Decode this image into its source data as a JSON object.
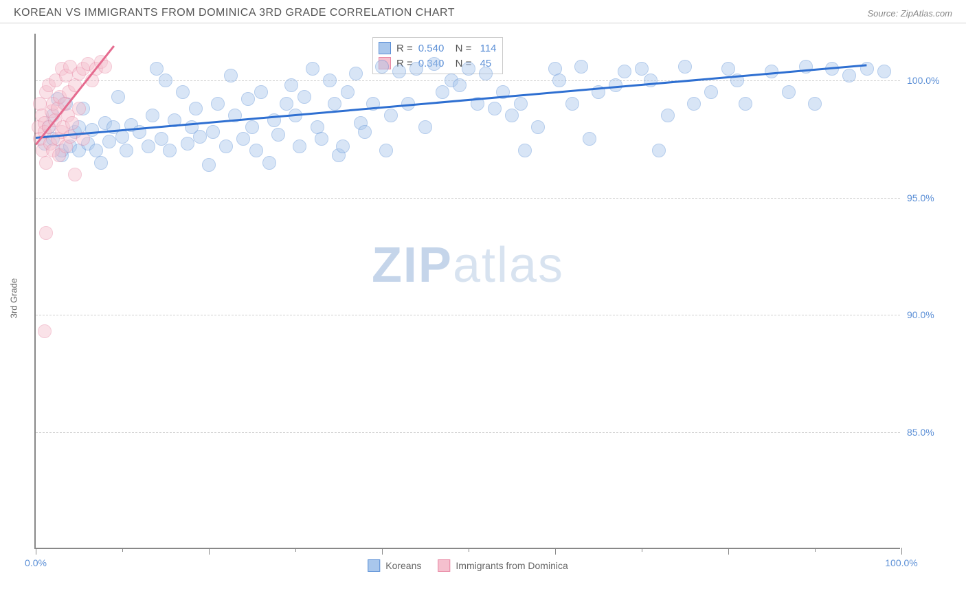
{
  "header": {
    "title": "KOREAN VS IMMIGRANTS FROM DOMINICA 3RD GRADE CORRELATION CHART",
    "source": "Source: ZipAtlas.com"
  },
  "watermark": {
    "part1": "ZIP",
    "part2": "atlas"
  },
  "chart": {
    "type": "scatter",
    "ylabel": "3rd Grade",
    "xlim": [
      0,
      100
    ],
    "ylim": [
      80,
      102
    ],
    "yticks": [
      {
        "value": 85,
        "label": "85.0%"
      },
      {
        "value": 90,
        "label": "90.0%"
      },
      {
        "value": 95,
        "label": "95.0%"
      },
      {
        "value": 100,
        "label": "100.0%"
      }
    ],
    "xticks_major": [
      0,
      20,
      40,
      60,
      80,
      100
    ],
    "xtick_labels": [
      {
        "value": 0,
        "label": "0.0%"
      },
      {
        "value": 100,
        "label": "100.0%"
      }
    ],
    "xticks_minor": [
      10,
      30,
      50,
      70,
      90
    ],
    "background_color": "#ffffff",
    "grid_color": "#d0d0d0",
    "axis_color": "#888888",
    "label_color": "#5b8fd6",
    "marker_radius": 10,
    "marker_opacity": 0.45,
    "series": [
      {
        "name": "Koreans",
        "color_fill": "#a9c7ec",
        "color_stroke": "#5b8fd6",
        "trend_color": "#2e6fd1",
        "trend_width": 3,
        "r": "0.540",
        "n": "114",
        "trend": {
          "x1": 0,
          "y1": 97.6,
          "x2": 96,
          "y2": 100.7
        },
        "points": [
          [
            1,
            97.3
          ],
          [
            1.5,
            98.0
          ],
          [
            2,
            97.5
          ],
          [
            2,
            98.5
          ],
          [
            2.5,
            99.2
          ],
          [
            3,
            96.8
          ],
          [
            3,
            97.0
          ],
          [
            3.5,
            99.0
          ],
          [
            4,
            97.2
          ],
          [
            4.5,
            97.8
          ],
          [
            5,
            97.0
          ],
          [
            5,
            98.0
          ],
          [
            5.5,
            98.8
          ],
          [
            6,
            97.3
          ],
          [
            6.5,
            97.9
          ],
          [
            7,
            97.0
          ],
          [
            7.5,
            96.5
          ],
          [
            8,
            98.2
          ],
          [
            8.5,
            97.4
          ],
          [
            9,
            98.0
          ],
          [
            9.5,
            99.3
          ],
          [
            10,
            97.6
          ],
          [
            10.5,
            97.0
          ],
          [
            11,
            98.1
          ],
          [
            12,
            97.8
          ],
          [
            13,
            97.2
          ],
          [
            13.5,
            98.5
          ],
          [
            14,
            100.5
          ],
          [
            14.5,
            97.5
          ],
          [
            15,
            100.0
          ],
          [
            15.5,
            97.0
          ],
          [
            16,
            98.3
          ],
          [
            17,
            99.5
          ],
          [
            17.5,
            97.3
          ],
          [
            18,
            98.0
          ],
          [
            18.5,
            98.8
          ],
          [
            19,
            97.6
          ],
          [
            20,
            96.4
          ],
          [
            20.5,
            97.8
          ],
          [
            21,
            99.0
          ],
          [
            22,
            97.2
          ],
          [
            22.5,
            100.2
          ],
          [
            23,
            98.5
          ],
          [
            24,
            97.5
          ],
          [
            24.5,
            99.2
          ],
          [
            25,
            98.0
          ],
          [
            25.5,
            97.0
          ],
          [
            26,
            99.5
          ],
          [
            27,
            96.5
          ],
          [
            27.5,
            98.3
          ],
          [
            28,
            97.7
          ],
          [
            29,
            99.0
          ],
          [
            29.5,
            99.8
          ],
          [
            30,
            98.5
          ],
          [
            30.5,
            97.2
          ],
          [
            31,
            99.3
          ],
          [
            32,
            100.5
          ],
          [
            32.5,
            98.0
          ],
          [
            33,
            97.5
          ],
          [
            34,
            100.0
          ],
          [
            34.5,
            99.0
          ],
          [
            35,
            96.8
          ],
          [
            35.5,
            97.2
          ],
          [
            36,
            99.5
          ],
          [
            37,
            100.3
          ],
          [
            37.5,
            98.2
          ],
          [
            38,
            97.8
          ],
          [
            39,
            99.0
          ],
          [
            40,
            100.6
          ],
          [
            40.5,
            97.0
          ],
          [
            41,
            98.5
          ],
          [
            42,
            100.4
          ],
          [
            43,
            99.0
          ],
          [
            44,
            100.5
          ],
          [
            45,
            98.0
          ],
          [
            46,
            100.7
          ],
          [
            47,
            99.5
          ],
          [
            48,
            100.0
          ],
          [
            49,
            99.8
          ],
          [
            50,
            100.5
          ],
          [
            51,
            99.0
          ],
          [
            52,
            100.3
          ],
          [
            53,
            98.8
          ],
          [
            54,
            99.5
          ],
          [
            55,
            98.5
          ],
          [
            56,
            99.0
          ],
          [
            56.5,
            97.0
          ],
          [
            58,
            98.0
          ],
          [
            60,
            100.5
          ],
          [
            60.5,
            100.0
          ],
          [
            62,
            99.0
          ],
          [
            63,
            100.6
          ],
          [
            64,
            97.5
          ],
          [
            65,
            99.5
          ],
          [
            67,
            99.8
          ],
          [
            68,
            100.4
          ],
          [
            70,
            100.5
          ],
          [
            71,
            100.0
          ],
          [
            72,
            97.0
          ],
          [
            73,
            98.5
          ],
          [
            75,
            100.6
          ],
          [
            76,
            99.0
          ],
          [
            78,
            99.5
          ],
          [
            80,
            100.5
          ],
          [
            81,
            100.0
          ],
          [
            82,
            99.0
          ],
          [
            85,
            100.4
          ],
          [
            87,
            99.5
          ],
          [
            89,
            100.6
          ],
          [
            90,
            99.0
          ],
          [
            92,
            100.5
          ],
          [
            94,
            100.2
          ],
          [
            96,
            100.5
          ],
          [
            98,
            100.4
          ]
        ]
      },
      {
        "name": "Immigrants from Dominica",
        "color_fill": "#f5c0ce",
        "color_stroke": "#e887a3",
        "trend_color": "#e56b8f",
        "trend_width": 2.5,
        "r": "0.340",
        "n": "45",
        "trend": {
          "x1": 0,
          "y1": 97.3,
          "x2": 9,
          "y2": 101.5
        },
        "points": [
          [
            0.3,
            98.0
          ],
          [
            0.5,
            97.5
          ],
          [
            0.5,
            99.0
          ],
          [
            0.7,
            98.5
          ],
          [
            0.8,
            97.0
          ],
          [
            1.0,
            98.2
          ],
          [
            1.0,
            97.8
          ],
          [
            1.2,
            99.5
          ],
          [
            1.2,
            96.5
          ],
          [
            1.5,
            98.0
          ],
          [
            1.5,
            99.8
          ],
          [
            1.7,
            97.3
          ],
          [
            1.8,
            98.7
          ],
          [
            2.0,
            97.0
          ],
          [
            2.0,
            99.0
          ],
          [
            2.2,
            98.3
          ],
          [
            2.3,
            100.0
          ],
          [
            2.5,
            97.5
          ],
          [
            2.5,
            98.8
          ],
          [
            2.7,
            96.8
          ],
          [
            2.8,
            99.3
          ],
          [
            3.0,
            97.8
          ],
          [
            3.0,
            100.5
          ],
          [
            3.2,
            98.0
          ],
          [
            3.3,
            99.0
          ],
          [
            3.5,
            97.2
          ],
          [
            3.5,
            100.2
          ],
          [
            3.7,
            98.5
          ],
          [
            3.8,
            99.5
          ],
          [
            4.0,
            97.6
          ],
          [
            4.0,
            100.6
          ],
          [
            4.2,
            98.2
          ],
          [
            4.5,
            99.8
          ],
          [
            4.5,
            96.0
          ],
          [
            5.0,
            100.3
          ],
          [
            5.0,
            98.8
          ],
          [
            5.5,
            100.5
          ],
          [
            5.5,
            97.5
          ],
          [
            6.0,
            100.7
          ],
          [
            6.5,
            100.0
          ],
          [
            7.0,
            100.5
          ],
          [
            7.5,
            100.8
          ],
          [
            8.0,
            100.6
          ],
          [
            1.2,
            93.5
          ],
          [
            1.0,
            89.3
          ]
        ]
      }
    ],
    "legend_bottom": [
      {
        "label": "Koreans",
        "fill": "#a9c7ec",
        "stroke": "#5b8fd6"
      },
      {
        "label": "Immigrants from Dominica",
        "fill": "#f5c0ce",
        "stroke": "#e887a3"
      }
    ]
  }
}
